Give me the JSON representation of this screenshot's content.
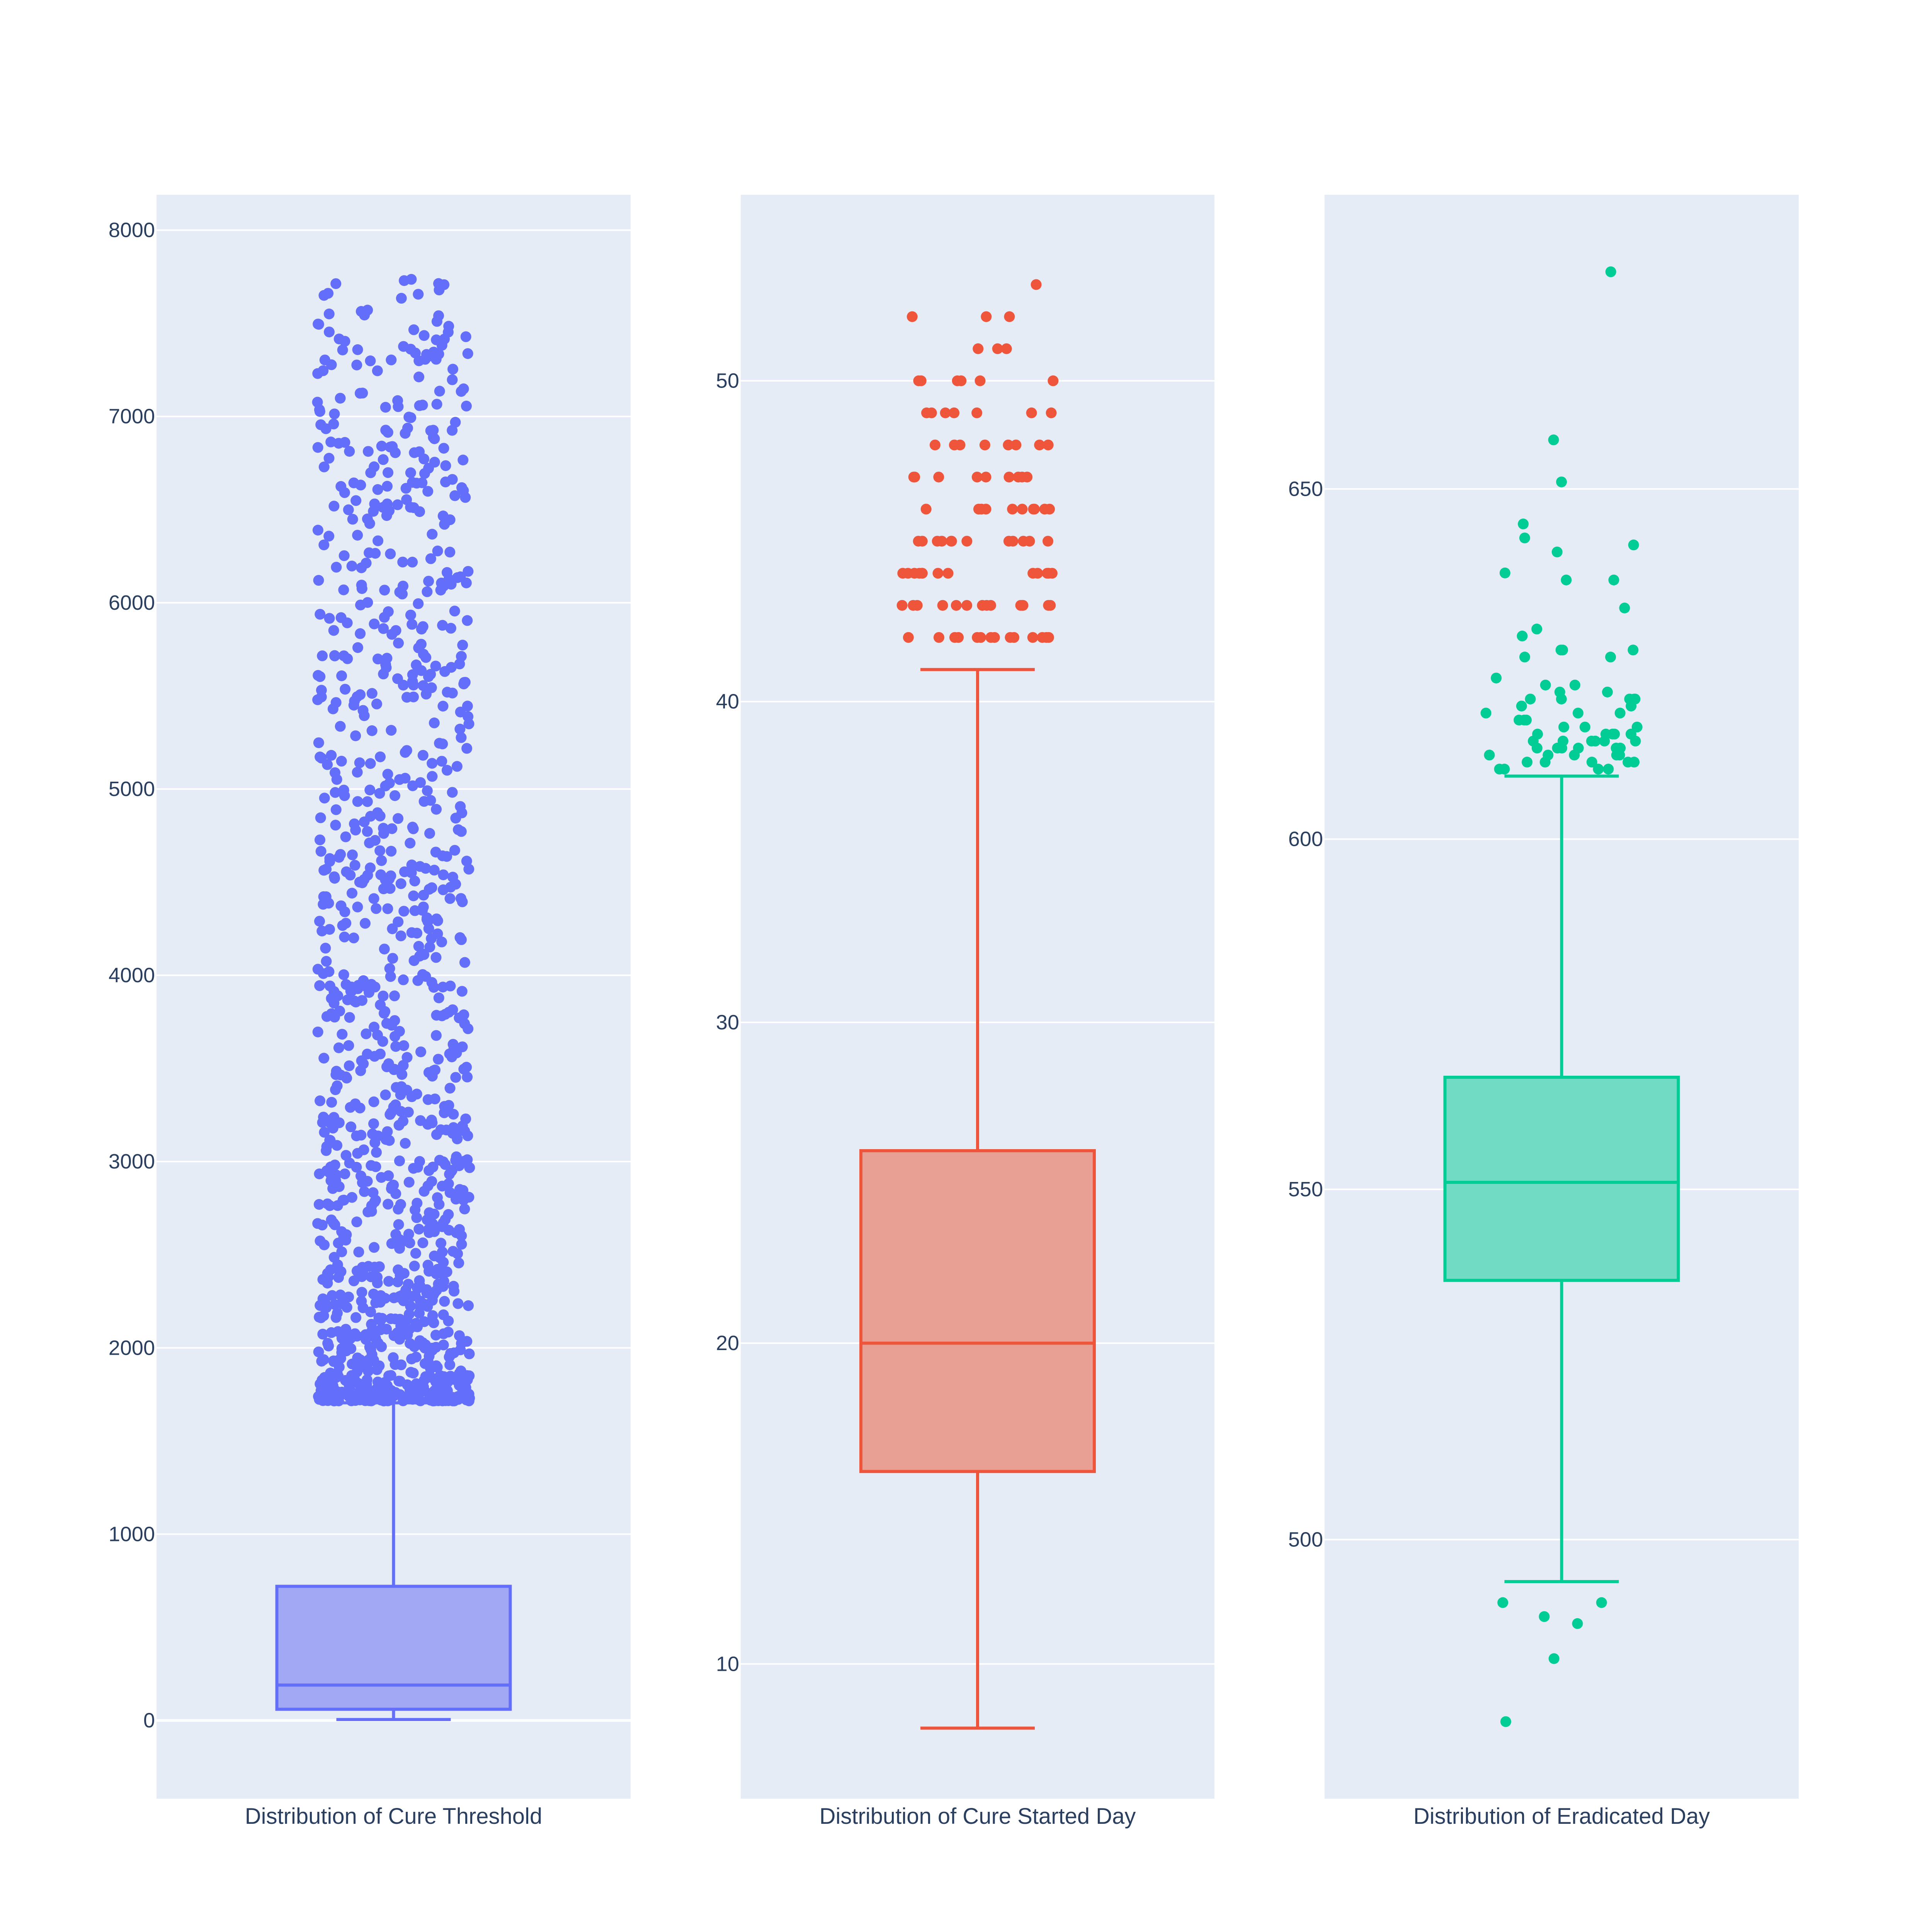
{
  "chart_data": [
    {
      "type": "box",
      "category": "Distribution of Cure Threshold",
      "color": "#636efa",
      "fill": "#a3a8f5",
      "ylim": [
        -420,
        8190
      ],
      "yticks": [
        0,
        1000,
        2000,
        3000,
        4000,
        5000,
        6000,
        7000,
        8000
      ],
      "yticklabels": [
        "0",
        "1000",
        "2000",
        "3000",
        "4000",
        "5000",
        "6000",
        "7000",
        "8000"
      ],
      "grid": true,
      "stats": {
        "lower_whisker": 5,
        "q1": 60,
        "median": 190,
        "q3": 720,
        "upper_whisker": 1705
      },
      "outliers": {
        "count": 1150,
        "min": 1715,
        "max": 7760,
        "distribution": "dense near 1715-3600, thinning toward 7760"
      }
    },
    {
      "type": "box",
      "category": "Distribution of Cure Started Day",
      "color": "#ef553b",
      "fill": "#e8a095",
      "ylim": [
        5.8,
        55.8
      ],
      "yticks": [
        10,
        20,
        30,
        40,
        50
      ],
      "yticklabels": [
        "10",
        "20",
        "30",
        "40",
        "50"
      ],
      "grid": true,
      "stats": {
        "lower_whisker": 8,
        "q1": 16,
        "median": 20,
        "q3": 26,
        "upper_whisker": 41
      },
      "outliers": {
        "values": [
          42,
          43,
          44,
          45,
          46,
          47,
          48,
          49,
          50,
          51,
          52,
          53
        ],
        "counts": [
          14,
          14,
          13,
          12,
          10,
          9,
          8,
          7,
          6,
          3,
          3,
          1
        ]
      }
    },
    {
      "type": "box",
      "category": "Distribution of Eradicated Day",
      "color": "#00cc96",
      "fill": "#72dbc3",
      "ylim": [
        463,
        692
      ],
      "yticks": [
        500,
        550,
        600,
        650
      ],
      "yticklabels": [
        "500",
        "550",
        "600",
        "650"
      ],
      "grid": true,
      "stats": {
        "lower_whisker": 494,
        "q1": 537,
        "median": 551,
        "q3": 566,
        "upper_whisker": 609
      },
      "outliers": {
        "values": [
          681,
          657,
          651,
          645,
          643,
          642,
          641,
          638,
          637,
          637,
          633,
          630,
          629,
          627,
          627,
          627,
          626,
          626,
          623,
          622,
          622,
          621,
          621,
          620,
          620,
          620,
          620,
          620,
          619,
          619,
          618,
          618,
          618,
          617,
          617,
          617,
          616,
          616,
          616,
          615,
          615,
          615,
          615,
          615,
          614,
          614,
          614,
          614,
          614,
          614,
          613,
          613,
          613,
          613,
          613,
          613,
          612,
          612,
          612,
          612,
          612,
          611,
          611,
          611,
          611,
          611,
          610,
          610,
          610,
          610,
          491,
          491,
          489,
          488,
          483,
          474
        ]
      }
    }
  ]
}
